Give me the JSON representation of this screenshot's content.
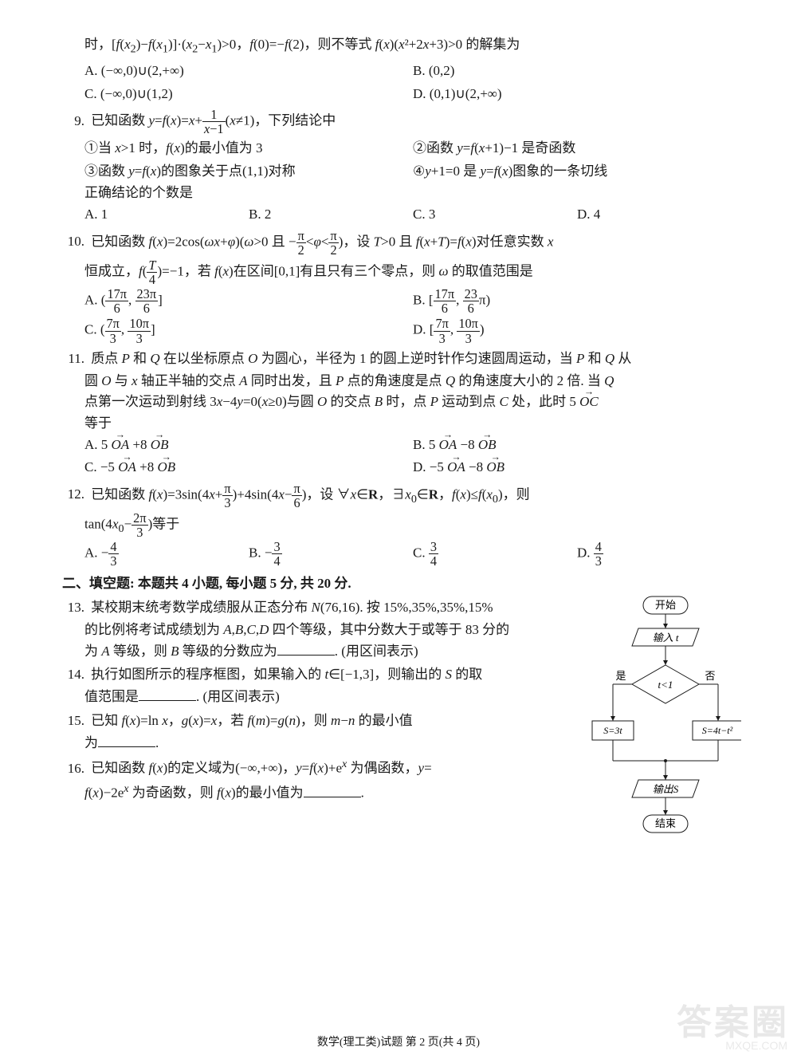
{
  "footer": "数学(理工类)试题 第 2 页(共 4 页)",
  "watermark": {
    "big": "答案圈",
    "small": "MXQE.COM"
  },
  "q8": {
    "stem_line1": "时, [f(x₂)−f(x₁)]·(x₂−x₁)>0, f(0)=−f(2), 则不等式 f(x)(x²+2x+3)>0 的解集为",
    "A": "A. (−∞,0)∪(2,+∞)",
    "B": "B. (0,2)",
    "C": "C. (−∞,0)∪(1,2)",
    "D": "D. (0,1)∪(2,+∞)"
  },
  "q9": {
    "num": "9.",
    "A": "A. 1",
    "B": "B. 2",
    "C": "C. 3",
    "D": "D. 4"
  },
  "q10": {
    "num": "10."
  },
  "q11": {
    "num": "11."
  },
  "q12": {
    "num": "12."
  },
  "section2": "二、填空题: 本题共 4 小题, 每小题 5 分, 共 20 分.",
  "q13": {
    "num": "13."
  },
  "q14": {
    "num": "14."
  },
  "q15": {
    "num": "15."
  },
  "q16": {
    "num": "16."
  },
  "flowchart": {
    "start": "开始",
    "input": "输入 t",
    "decision": "t<1",
    "yes_label": "是",
    "no_label": "否",
    "left_box": "S=3t",
    "right_box": "S=4t−t²",
    "output": "输出S",
    "end": "结束",
    "colors": {
      "stroke": "#1a1a1a",
      "bg": "#ffffff"
    }
  }
}
